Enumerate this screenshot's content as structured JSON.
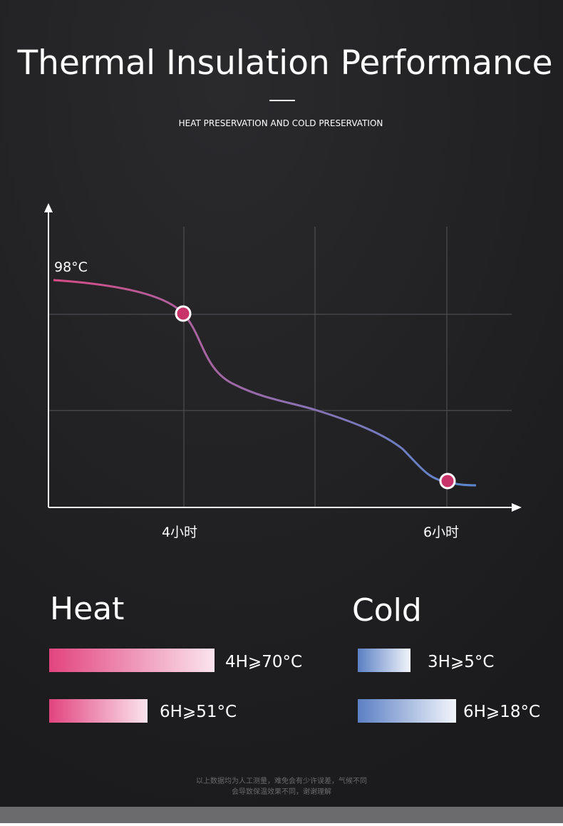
{
  "header": {
    "title": "Thermal Insulation Performance",
    "subtitle": "HEAT PRESERVATION AND COLD PRESERVATION"
  },
  "chart": {
    "start_label": "98°C",
    "x_labels": [
      "4小时",
      "6小时"
    ]
  },
  "legend": {
    "heat": {
      "title": "Heat",
      "items": [
        "4H⩾70°C",
        "6H⩾51°C"
      ]
    },
    "cold": {
      "title": "Cold",
      "items": [
        "3H⩾5°C",
        "6H⩾18°C"
      ]
    }
  },
  "footnote": [
    "以上数据均为人工测量，难免会有少许误差，气候不同",
    "会导致保温效果不同，谢谢理解"
  ]
}
